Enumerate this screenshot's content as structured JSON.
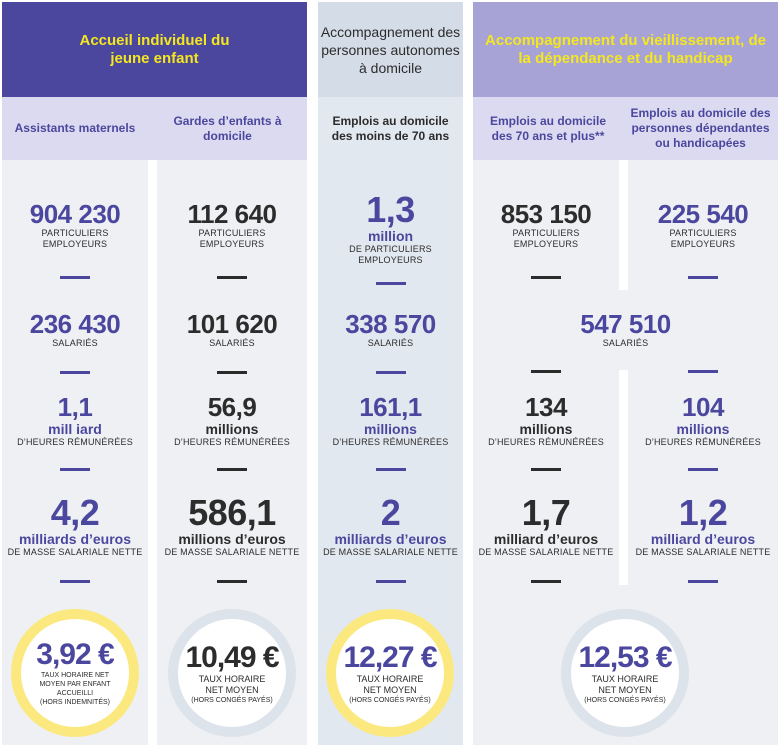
{
  "colors": {
    "purple_dark": "#4b479e",
    "purple_light": "#a7a3d7",
    "lavender": "#dcdaf0",
    "panel_grey": "#eef0f4",
    "panel_blue": "#e2e8ef",
    "blue_head": "#d4dde7",
    "yellow_text": "#f5e71f",
    "yellow_ring": "#fbe980",
    "grey_ring": "#dde3ea",
    "dash_dark": "#2b2b2b"
  },
  "groups": {
    "jeune": "Accueil individuel du jeune enfant",
    "domicile": "Accompagnement des personnes autonomes à domicile",
    "vieillissement": "Accompagnement du vieillissement, de la dépendance et du handicap"
  },
  "columns": {
    "assistants": "Assistants maternels",
    "gardes": "Gardes d’enfants à domicile",
    "moins70": "Emplois au domicile des moins de 70 ans",
    "plus70": "Emplois au domicile des 70 ans et plus**",
    "dependants": "Emplois au domicile des personnes dépendantes ou handicapées"
  },
  "chart_data": {
    "type": "table",
    "title": "",
    "columns": [
      "Assistants maternels",
      "Gardes d’enfants à domicile",
      "Emplois au domicile des moins de 70 ans",
      "Emplois au domicile des 70 ans et plus**",
      "Emplois au domicile des personnes dépendantes ou handicapées"
    ],
    "employeurs": {
      "values": [
        "904 230",
        "112 640",
        "1,3",
        "853 150",
        "225 540"
      ],
      "unit_moins70": "million",
      "label": "PARTICULIERS EMPLOYEURS",
      "label_moins70": "DE PARTICULIERS EMPLOYEURS"
    },
    "salaries": {
      "values": [
        "236 430",
        "101 620",
        "338 570",
        "547 510"
      ],
      "label": "SALARIÉS",
      "note": "547 510 shared by the two last columns"
    },
    "heures": {
      "values": [
        "1,1",
        "56,9",
        "161,1",
        "134",
        "104"
      ],
      "units": [
        "mill iard",
        "millions",
        "millions",
        "millions",
        "millions"
      ],
      "label": "D’HEURES RÉMUNÉRÉES"
    },
    "masse": {
      "values": [
        "4,2",
        "586,1",
        "2",
        "1,7",
        "1,2"
      ],
      "units": [
        "milliards d’euros",
        "millions d’euros",
        "milliards d’euros",
        "milliard d’euros",
        "milliard d’euros"
      ],
      "label": "DE MASSE SALARIALE NETTE"
    },
    "taux": {
      "values": [
        "3,92 €",
        "10,49 €",
        "12,27 €",
        "12,53 €"
      ],
      "label_enfant": "TAUX HORAIRE NET MOYEN PAR ENFANT ACCUEILLI",
      "note_enfant": "(HORS INDEMNITÉS)",
      "label": "TAUX HORAIRE NET MOYEN",
      "note": "(HORS CONGÉS PAYÉS)"
    }
  }
}
